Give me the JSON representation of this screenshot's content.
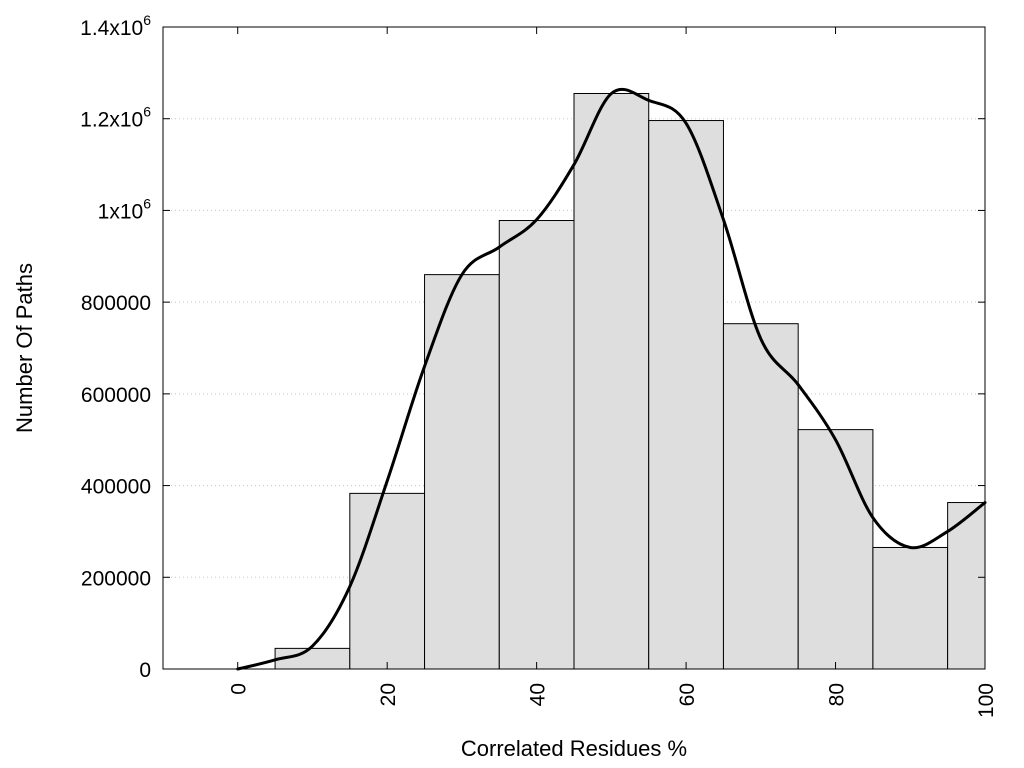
{
  "chart_data": {
    "type": "bar",
    "xlabel": "Correlated Residues %",
    "ylabel": "Number Of Paths",
    "xlim": [
      -10,
      100
    ],
    "ylim": [
      0,
      1400000
    ],
    "grid": true,
    "x_ticks": [
      {
        "value": 0,
        "label": "0"
      },
      {
        "value": 20,
        "label": "20"
      },
      {
        "value": 40,
        "label": "40"
      },
      {
        "value": 60,
        "label": "60"
      },
      {
        "value": 80,
        "label": "80"
      },
      {
        "value": 100,
        "label": "100"
      }
    ],
    "y_ticks": [
      {
        "value": 0,
        "base": "0",
        "sup": ""
      },
      {
        "value": 200000,
        "base": "200000",
        "sup": ""
      },
      {
        "value": 400000,
        "base": "400000",
        "sup": ""
      },
      {
        "value": 600000,
        "base": "600000",
        "sup": ""
      },
      {
        "value": 800000,
        "base": "800000",
        "sup": ""
      },
      {
        "value": 1000000,
        "base": "1x10",
        "sup": "6"
      },
      {
        "value": 1200000,
        "base": "1.2x10",
        "sup": "6"
      },
      {
        "value": 1400000,
        "base": "1.4x10",
        "sup": "6"
      }
    ],
    "bars": [
      {
        "center": 0,
        "value": 0
      },
      {
        "center": 10,
        "value": 45000
      },
      {
        "center": 20,
        "value": 383000
      },
      {
        "center": 30,
        "value": 860000
      },
      {
        "center": 40,
        "value": 978000
      },
      {
        "center": 50,
        "value": 1255000
      },
      {
        "center": 60,
        "value": 1196000
      },
      {
        "center": 70,
        "value": 753000
      },
      {
        "center": 80,
        "value": 522000
      },
      {
        "center": 90,
        "value": 265000
      },
      {
        "center": 100,
        "value": 363000
      }
    ],
    "bar_width": 10,
    "curve": {
      "x": [
        0,
        5,
        10,
        15,
        20,
        25,
        30,
        35,
        40,
        45,
        50,
        55,
        60,
        65,
        70,
        75,
        80,
        85,
        90,
        95,
        100
      ],
      "y": [
        0,
        20000,
        50000,
        180000,
        410000,
        660000,
        860000,
        920000,
        980000,
        1100000,
        1255000,
        1240000,
        1190000,
        980000,
        720000,
        620000,
        500000,
        330000,
        265000,
        300000,
        363000
      ]
    }
  }
}
